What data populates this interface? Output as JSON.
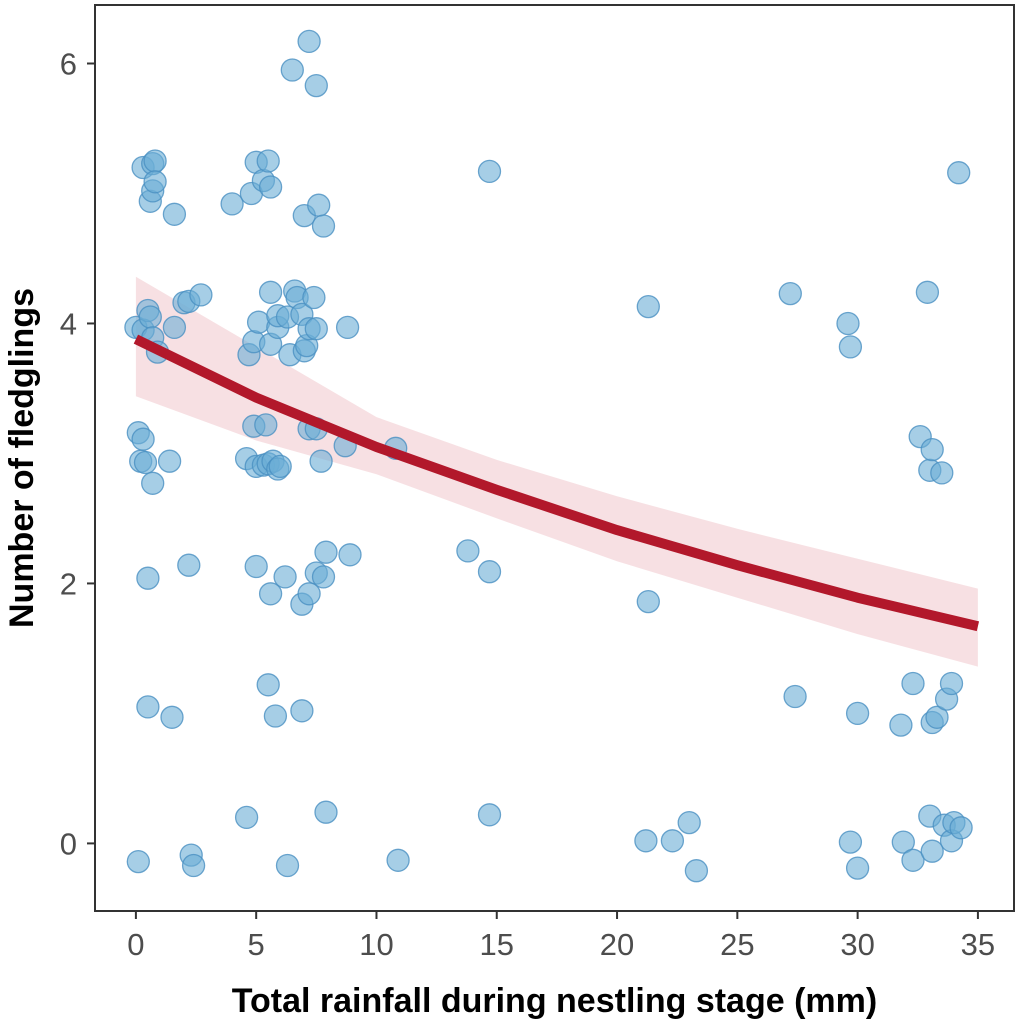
{
  "chart_data": {
    "type": "scatter",
    "xlabel": "Total rainfall during nestling stage (mm)",
    "ylabel": "Number of fledglings",
    "xlim": [
      -1.7,
      36.5
    ],
    "ylim": [
      -0.52,
      6.45
    ],
    "x_ticks": [
      0,
      5,
      10,
      15,
      20,
      25,
      30,
      35
    ],
    "y_ticks": [
      0,
      2,
      4,
      6
    ],
    "grid": false,
    "legend": "none",
    "colors": {
      "points_fill": "#6baed6",
      "points_stroke": "#4a90c2",
      "fit_line": "#b2182b",
      "ci_band": "#f4d6da"
    },
    "series": [
      {
        "kind": "points",
        "points": [
          [
            0.1,
            -0.14
          ],
          [
            2.3,
            -0.09
          ],
          [
            2.4,
            -0.17
          ],
          [
            6.3,
            -0.17
          ],
          [
            10.9,
            -0.13
          ],
          [
            4.6,
            0.2
          ],
          [
            7.9,
            0.24
          ],
          [
            14.7,
            0.22
          ],
          [
            21.2,
            0.02
          ],
          [
            22.3,
            0.02
          ],
          [
            23.0,
            0.16
          ],
          [
            23.3,
            -0.21
          ],
          [
            29.7,
            0.01
          ],
          [
            30.0,
            -0.19
          ],
          [
            31.9,
            0.01
          ],
          [
            32.3,
            -0.13
          ],
          [
            33.0,
            0.21
          ],
          [
            33.1,
            -0.06
          ],
          [
            33.6,
            0.14
          ],
          [
            33.9,
            0.02
          ],
          [
            34.0,
            0.16
          ],
          [
            34.3,
            0.12
          ],
          [
            0.5,
            1.05
          ],
          [
            1.5,
            0.97
          ],
          [
            5.5,
            1.22
          ],
          [
            5.8,
            0.98
          ],
          [
            6.9,
            1.02
          ],
          [
            27.4,
            1.13
          ],
          [
            30.0,
            1.0
          ],
          [
            31.8,
            0.91
          ],
          [
            32.3,
            1.23
          ],
          [
            33.1,
            0.93
          ],
          [
            33.3,
            0.97
          ],
          [
            33.7,
            1.11
          ],
          [
            33.9,
            1.23
          ],
          [
            0.5,
            2.04
          ],
          [
            2.2,
            2.14
          ],
          [
            5.0,
            2.13
          ],
          [
            5.6,
            1.92
          ],
          [
            6.2,
            2.05
          ],
          [
            6.9,
            1.84
          ],
          [
            7.2,
            1.92
          ],
          [
            7.5,
            2.08
          ],
          [
            7.8,
            2.05
          ],
          [
            7.9,
            2.24
          ],
          [
            8.9,
            2.22
          ],
          [
            13.8,
            2.25
          ],
          [
            14.7,
            2.09
          ],
          [
            21.3,
            1.86
          ],
          [
            0.1,
            3.16
          ],
          [
            0.3,
            3.11
          ],
          [
            0.2,
            2.94
          ],
          [
            0.4,
            2.93
          ],
          [
            0.7,
            2.77
          ],
          [
            1.4,
            2.94
          ],
          [
            4.6,
            2.96
          ],
          [
            4.9,
            3.21
          ],
          [
            5.0,
            2.9
          ],
          [
            5.3,
            2.91
          ],
          [
            5.4,
            3.22
          ],
          [
            5.5,
            2.92
          ],
          [
            5.7,
            2.94
          ],
          [
            5.9,
            2.88
          ],
          [
            6.0,
            2.9
          ],
          [
            7.2,
            3.19
          ],
          [
            7.5,
            3.19
          ],
          [
            7.7,
            2.94
          ],
          [
            8.7,
            3.06
          ],
          [
            10.8,
            3.04
          ],
          [
            32.6,
            3.13
          ],
          [
            33.0,
            2.87
          ],
          [
            33.1,
            3.03
          ],
          [
            33.5,
            2.85
          ],
          [
            0.0,
            3.97
          ],
          [
            0.3,
            3.95
          ],
          [
            0.5,
            4.1
          ],
          [
            0.6,
            4.05
          ],
          [
            0.7,
            3.89
          ],
          [
            0.9,
            3.78
          ],
          [
            1.6,
            3.97
          ],
          [
            2.0,
            4.16
          ],
          [
            2.2,
            4.17
          ],
          [
            2.7,
            4.22
          ],
          [
            4.7,
            3.76
          ],
          [
            4.9,
            3.86
          ],
          [
            5.1,
            4.01
          ],
          [
            5.6,
            3.84
          ],
          [
            5.6,
            4.24
          ],
          [
            5.9,
            3.97
          ],
          [
            5.9,
            4.06
          ],
          [
            6.3,
            4.05
          ],
          [
            6.4,
            3.76
          ],
          [
            6.6,
            4.25
          ],
          [
            6.7,
            4.2
          ],
          [
            6.9,
            4.07
          ],
          [
            7.0,
            3.79
          ],
          [
            7.1,
            3.83
          ],
          [
            7.2,
            3.96
          ],
          [
            7.4,
            4.2
          ],
          [
            7.5,
            3.96
          ],
          [
            8.8,
            3.97
          ],
          [
            21.3,
            4.13
          ],
          [
            27.2,
            4.23
          ],
          [
            29.6,
            4.0
          ],
          [
            29.7,
            3.82
          ],
          [
            32.9,
            4.24
          ],
          [
            0.3,
            5.2
          ],
          [
            0.6,
            4.94
          ],
          [
            0.7,
            5.02
          ],
          [
            0.7,
            5.23
          ],
          [
            0.8,
            5.25
          ],
          [
            0.8,
            5.09
          ],
          [
            1.6,
            4.84
          ],
          [
            4.0,
            4.92
          ],
          [
            4.8,
            5.0
          ],
          [
            5.0,
            5.24
          ],
          [
            5.3,
            5.1
          ],
          [
            5.5,
            5.25
          ],
          [
            5.6,
            5.05
          ],
          [
            7.0,
            4.83
          ],
          [
            7.6,
            4.91
          ],
          [
            7.8,
            4.75
          ],
          [
            14.7,
            5.17
          ],
          [
            34.2,
            5.16
          ],
          [
            6.5,
            5.95
          ],
          [
            7.2,
            6.17
          ],
          [
            7.5,
            5.83
          ]
        ]
      },
      {
        "kind": "fit",
        "x": [
          0,
          5,
          10,
          15,
          20,
          25,
          30,
          35
        ],
        "y": [
          3.88,
          3.43,
          3.05,
          2.72,
          2.41,
          2.14,
          1.89,
          1.67
        ],
        "lower": [
          3.44,
          3.1,
          2.84,
          2.5,
          2.17,
          1.89,
          1.61,
          1.36
        ],
        "upper": [
          4.36,
          3.82,
          3.28,
          2.95,
          2.67,
          2.42,
          2.19,
          1.96
        ]
      }
    ]
  }
}
